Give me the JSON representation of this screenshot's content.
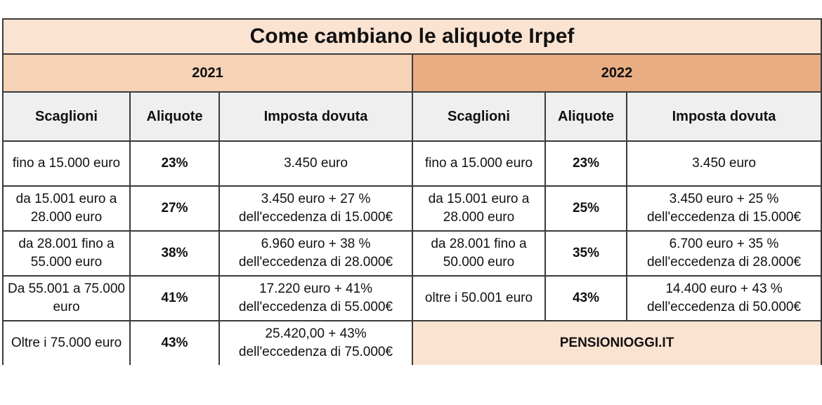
{
  "title": "Come cambiano le aliquote Irpef",
  "years": {
    "y2021": "2021",
    "y2022": "2022"
  },
  "headers": {
    "scaglioni": "Scaglioni",
    "aliquote": "Aliquote",
    "imposta": "Imposta dovuta"
  },
  "rows_2021": [
    {
      "scaglione": "fino a 15.000 euro",
      "aliquota": "23%",
      "imposta": "3.450 euro"
    },
    {
      "scaglione": "da 15.001 euro a 28.000 euro",
      "aliquota": "27%",
      "imposta": "3.450 euro + 27 % dell'eccedenza di 15.000€"
    },
    {
      "scaglione": "da 28.001 fino a 55.000 euro",
      "aliquota": "38%",
      "imposta": "6.960 euro + 38 % dell'eccedenza di 28.000€"
    },
    {
      "scaglione": "Da 55.001 a 75.000 euro",
      "aliquota": "41%",
      "imposta": "17.220 euro + 41% dell'eccedenza di 55.000€"
    },
    {
      "scaglione": "Oltre i 75.000 euro",
      "aliquota": "43%",
      "imposta": "25.420,00 + 43% dell'eccedenza di 75.000€"
    }
  ],
  "rows_2022": [
    {
      "scaglione": "fino a 15.000 euro",
      "aliquota": "23%",
      "imposta": "3.450 euro"
    },
    {
      "scaglione": "da 15.001 euro a 28.000 euro",
      "aliquota": "25%",
      "imposta": "3.450 euro + 25 % dell'eccedenza di 15.000€"
    },
    {
      "scaglione": "da 28.001 fino a 50.000 euro",
      "aliquota": "35%",
      "imposta": "6.700 euro + 35 % dell'eccedenza di 28.000€"
    },
    {
      "scaglione": "oltre i 50.001 euro",
      "aliquota": "43%",
      "imposta": "14.400 euro + 43 % dell'eccedenza di 50.000€"
    }
  ],
  "brand": "PENSIONIOGGI.IT"
}
